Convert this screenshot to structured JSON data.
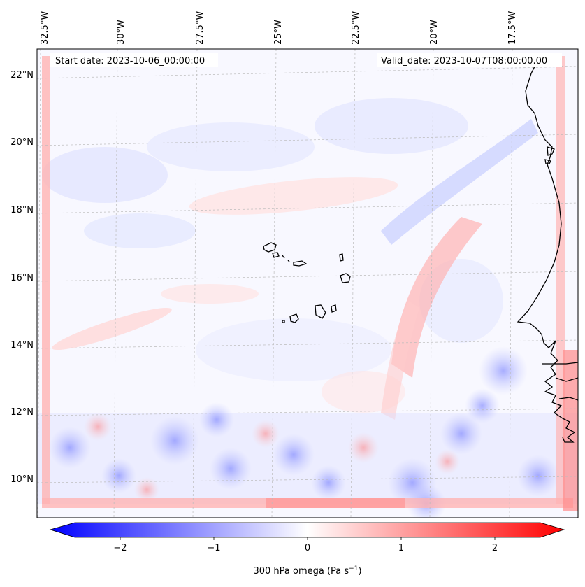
{
  "map": {
    "start_date": "Start date: 2023-10-06_00:00:00",
    "valid_date": "Valid_date: 2023-10-07T08:00:00.00",
    "lon_labels": [
      "32.5°W",
      "30°W",
      "27.5°W",
      "25°W",
      "22.5°W",
      "20°W",
      "17.5°W"
    ],
    "lat_labels": [
      "22°N",
      "20°N",
      "18°N",
      "16°N",
      "14°N",
      "12°N",
      "10°N"
    ],
    "islands": "Cape Verde islands",
    "coastline": "West African coast"
  },
  "colorbar": {
    "label": "300 hPa omega (Pa s",
    "label_sup": "−1",
    "label_close": ")",
    "ticks": [
      "−2",
      "−1",
      "0",
      "1",
      "2"
    ],
    "min": -2.6,
    "max": 2.6,
    "colors": {
      "negative": "#0000ff",
      "zero": "#ffffff",
      "positive": "#ff0000"
    },
    "extend": "both"
  }
}
